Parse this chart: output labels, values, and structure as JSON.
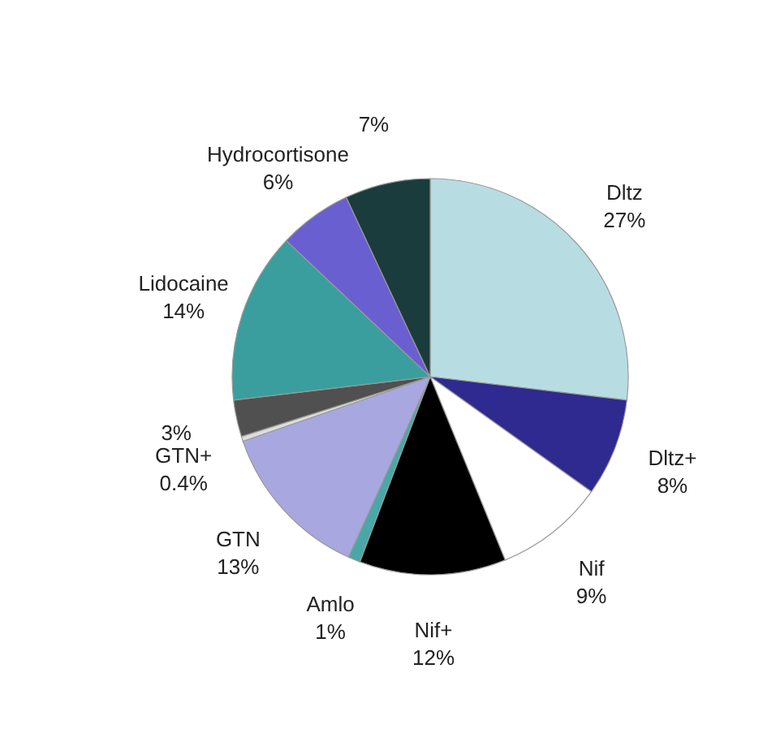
{
  "chart_data": {
    "type": "pie",
    "categories": [
      "Dltz",
      "Dltz+",
      "Nif",
      "Nif+",
      "Amlo",
      "GTN",
      "GTN+",
      null,
      "Lidocaine",
      "Hydrocortisone",
      null
    ],
    "values": [
      27,
      8,
      9,
      12,
      1,
      13,
      0.4,
      3,
      14,
      6,
      7
    ],
    "value_labels": [
      "27%",
      "8%",
      "9%",
      "12%",
      "1%",
      "13%",
      "0.4%",
      "3%",
      "14%",
      "6%",
      "7%"
    ],
    "colors": [
      "#b7dde3",
      "#2e2a8f",
      "#ffffff",
      "#000000",
      "#4aa7a7",
      "#a9a7e0",
      "#dddddd",
      "#505050",
      "#3a9e9e",
      "#6a5fd0",
      "#1b3c3c"
    ]
  }
}
